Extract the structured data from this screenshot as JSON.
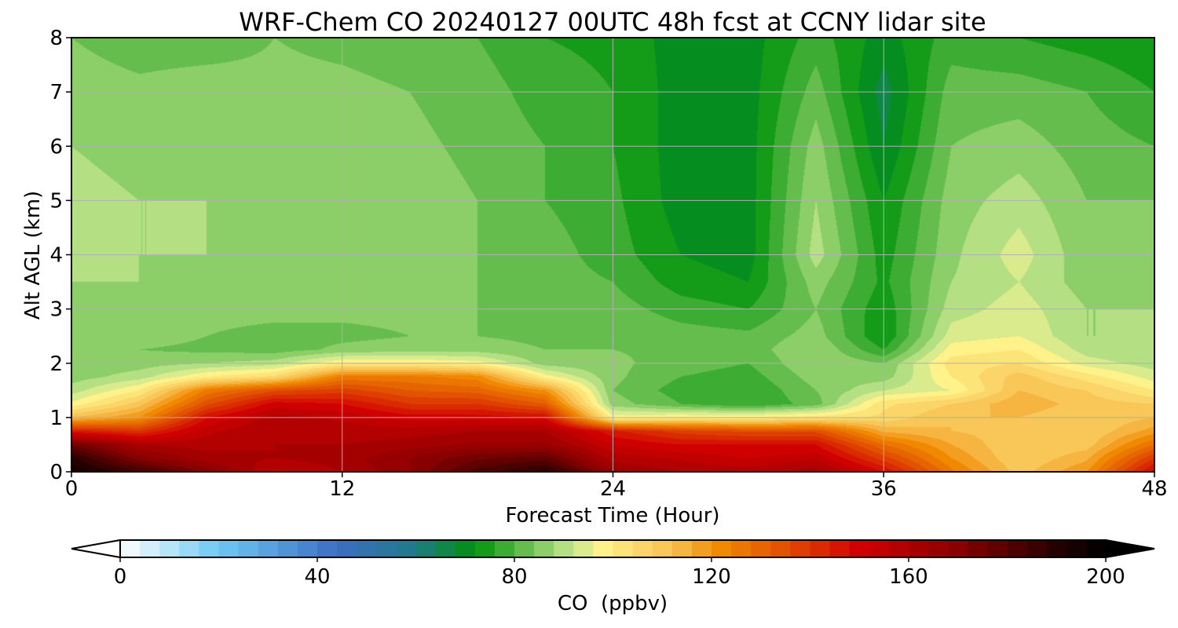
{
  "chart_data": {
    "type": "heatmap",
    "title": "WRF-Chem CO  20240127 00UTC 48h fcst at CCNY lidar site",
    "xlabel": "Forecast Time (Hour)",
    "ylabel": "Alt AGL (km)",
    "xlim": [
      0,
      48
    ],
    "ylim": [
      0,
      8
    ],
    "xticks": [
      0,
      12,
      24,
      36,
      48
    ],
    "yticks": [
      0,
      1,
      2,
      3,
      4,
      5,
      6,
      7,
      8
    ],
    "grid": true,
    "colorbar": {
      "label": "CO  (ppbv)",
      "range": [
        0,
        200
      ],
      "extend": "both",
      "ticks": [
        0,
        40,
        80,
        120,
        160,
        200
      ],
      "stops": [
        {
          "v": 0,
          "color": "#ffffff"
        },
        {
          "v": 20,
          "color": "#6cc8f2"
        },
        {
          "v": 44,
          "color": "#3b6fc4"
        },
        {
          "v": 60,
          "color": "#1f7a86"
        },
        {
          "v": 72,
          "color": "#00920a"
        },
        {
          "v": 92,
          "color": "#c8e890"
        },
        {
          "v": 98,
          "color": "#fff28a"
        },
        {
          "v": 112,
          "color": "#f8c050"
        },
        {
          "v": 122,
          "color": "#f08800"
        },
        {
          "v": 136,
          "color": "#e04a00"
        },
        {
          "v": 150,
          "color": "#d00000"
        },
        {
          "v": 170,
          "color": "#880000"
        },
        {
          "v": 190,
          "color": "#250000"
        },
        {
          "v": 200,
          "color": "#000000"
        }
      ]
    },
    "field": {
      "x": [
        0,
        3,
        6,
        9,
        12,
        15,
        18,
        21,
        24,
        27,
        30,
        33,
        36,
        39,
        42,
        45,
        48
      ],
      "y": [
        0,
        0.25,
        0.5,
        0.75,
        1,
        1.25,
        1.5,
        1.75,
        2,
        2.25,
        2.5,
        3,
        3.5,
        4,
        5,
        6,
        7,
        8
      ],
      "values": [
        [
          195,
          185,
          170,
          155,
          160,
          168,
          182,
          190,
          165,
          160,
          158,
          162,
          148,
          125,
          110,
          120,
          150
        ],
        [
          190,
          170,
          162,
          160,
          162,
          168,
          175,
          178,
          158,
          155,
          152,
          155,
          138,
          120,
          108,
          115,
          140
        ],
        [
          175,
          160,
          158,
          160,
          160,
          162,
          165,
          165,
          152,
          148,
          148,
          148,
          128,
          116,
          108,
          110,
          128
        ],
        [
          145,
          140,
          155,
          160,
          158,
          158,
          160,
          160,
          145,
          138,
          135,
          135,
          115,
          112,
          110,
          108,
          118
        ],
        [
          112,
          120,
          148,
          158,
          155,
          150,
          150,
          148,
          98,
          100,
          100,
          102,
          105,
          112,
          112,
          108,
          112
        ],
        [
          97,
          110,
          135,
          150,
          148,
          140,
          140,
          132,
          86,
          80,
          76,
          82,
          103,
          108,
          115,
          110,
          108
        ],
        [
          90,
          100,
          125,
          135,
          138,
          132,
          130,
          120,
          84,
          78,
          76,
          84,
          92,
          96,
          112,
          108,
          100
        ],
        [
          86,
          90,
          100,
          105,
          125,
          125,
          122,
          98,
          85,
          80,
          78,
          86,
          86,
          100,
          110,
          102,
          94
        ],
        [
          85,
          86,
          88,
          90,
          100,
          100,
          98,
          86,
          85,
          82,
          80,
          88,
          84,
          102,
          104,
          94,
          90
        ],
        [
          84,
          84,
          83,
          82,
          85,
          86,
          86,
          84,
          84,
          83,
          82,
          88,
          76,
          98,
          100,
          90,
          88
        ],
        [
          86,
          86,
          84,
          82,
          83,
          84,
          84,
          83,
          84,
          82,
          81,
          86,
          72,
          94,
          96,
          88,
          88
        ],
        [
          88,
          87,
          86,
          86,
          85,
          85,
          84,
          83,
          82,
          78,
          76,
          84,
          73,
          90,
          94,
          88,
          88
        ],
        [
          88,
          88,
          87,
          87,
          86,
          85,
          84,
          82,
          80,
          74,
          72,
          86,
          75,
          88,
          92,
          86,
          87
        ],
        [
          89,
          88,
          88,
          87,
          86,
          85,
          84,
          82,
          78,
          72,
          70,
          90,
          74,
          87,
          94,
          85,
          86
        ],
        [
          89,
          88,
          88,
          87,
          87,
          86,
          84,
          80,
          77,
          70,
          70,
          88,
          72,
          86,
          90,
          84,
          84
        ],
        [
          88,
          87,
          87,
          86,
          86,
          85,
          83,
          80,
          76,
          70,
          70,
          86,
          68,
          84,
          86,
          82,
          80
        ],
        [
          86,
          85,
          86,
          85,
          85,
          84,
          82,
          78,
          76,
          70,
          70,
          82,
          66,
          82,
          82,
          80,
          76
        ],
        [
          84,
          82,
          82,
          84,
          83,
          82,
          80,
          76,
          75,
          70,
          70,
          78,
          70,
          78,
          76,
          74,
          72
        ]
      ]
    }
  }
}
